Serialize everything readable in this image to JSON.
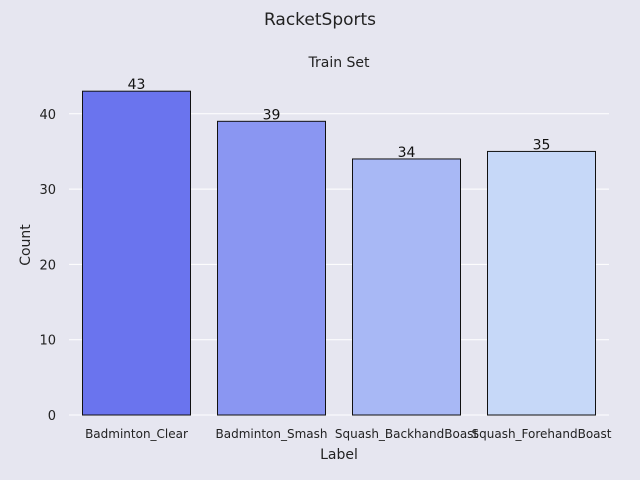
{
  "suptitle": "RacketSports",
  "chart_data": {
    "type": "bar",
    "title": "Train Set",
    "xlabel": "Label",
    "ylabel": "Count",
    "categories": [
      "Badminton_Clear",
      "Badminton_Smash",
      "Squash_BackhandBoast",
      "Squash_ForehandBoast"
    ],
    "values": [
      43,
      39,
      34,
      35
    ],
    "colors": [
      "#6a74ee",
      "#8a96f2",
      "#a8b8f5",
      "#c6d8f8"
    ],
    "ylim": [
      0,
      45.15
    ],
    "yticks": [
      0,
      10,
      20,
      30,
      40
    ],
    "grid": true,
    "legend": "none"
  }
}
